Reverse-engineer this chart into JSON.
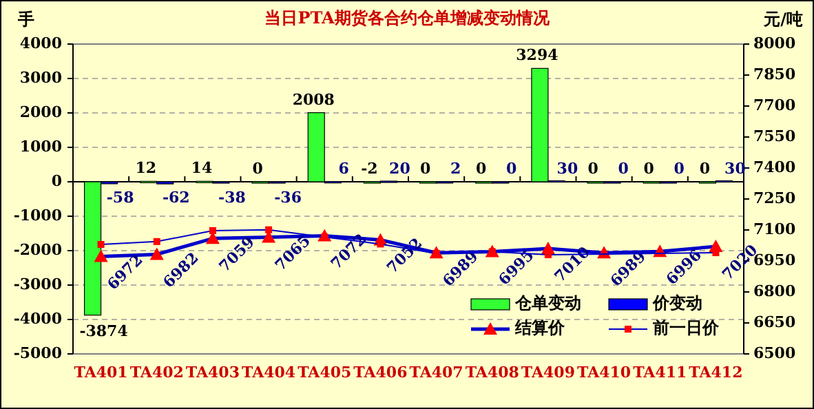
{
  "chart_data": {
    "type": "bar",
    "title": "当日PTA期货各合约仓单增减变动情况",
    "ylabel": "手",
    "y2label": "元/吨",
    "categories": [
      "TA401",
      "TA402",
      "TA403",
      "TA404",
      "TA405",
      "TA406",
      "TA407",
      "TA408",
      "TA409",
      "TA410",
      "TA411",
      "TA412"
    ],
    "series": [
      {
        "name": "仓单变动",
        "color": "#33ff33",
        "values": [
          -3874,
          12,
          14,
          0,
          2008,
          -2,
          0,
          0,
          3294,
          0,
          0,
          0
        ],
        "value_labels": [
          "-3874",
          "12",
          "14",
          "0",
          "2008",
          "-2",
          "0",
          "0",
          "3294",
          "0",
          "0",
          "0"
        ]
      },
      {
        "name": "价变动",
        "color": "#0000ff",
        "values": [
          -58,
          -62,
          -38,
          -36,
          6,
          20,
          2,
          0,
          30,
          0,
          0,
          30
        ],
        "value_labels": [
          "-58",
          "-62",
          "-38",
          "-36",
          "6",
          "20",
          "2",
          "0",
          "30",
          "0",
          "0",
          "30"
        ]
      },
      {
        "name": "结算价",
        "type": "line",
        "axis": "y2",
        "color": "#0000cc",
        "marker": "triangle",
        "values": [
          6972,
          6982,
          7059,
          7065,
          7072,
          7052,
          6989,
          6995,
          7010,
          6989,
          6996,
          7020
        ],
        "value_labels": [
          "6972",
          "6982",
          "7059",
          "7065",
          "7072",
          "7052",
          "6989",
          "6995",
          "7010",
          "6989",
          "6996",
          "7020"
        ]
      },
      {
        "name": "前一日价",
        "type": "line",
        "axis": "y2",
        "color": "#0000cc",
        "marker": "square",
        "values": [
          7030,
          7044,
          7097,
          7101,
          7066,
          7032,
          6987,
          6995,
          6980,
          null,
          null,
          6990
        ]
      }
    ],
    "ylim": [
      -5000,
      4000
    ],
    "yticks": [
      -5000,
      -4000,
      -3000,
      -2000,
      -1000,
      0,
      1000,
      2000,
      3000,
      4000
    ],
    "y2lim": [
      6500,
      8000
    ],
    "y2ticks": [
      6500,
      6650,
      6800,
      6950,
      7100,
      7250,
      7400,
      7550,
      7700,
      7850,
      8000
    ],
    "grid": "y",
    "legend": "bottom right"
  }
}
